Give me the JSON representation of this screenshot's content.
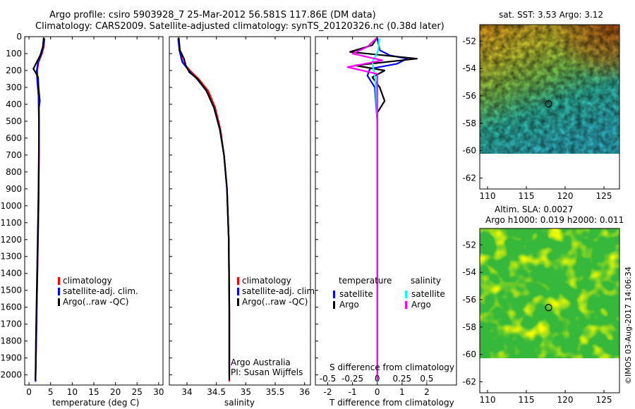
{
  "header": {
    "title_line1": "Argo profile: csiro 5903928_7 25-Mar-2012 56.581S 117.86E (DM data)",
    "title_line2": "Climatology: CARS2009. Satellite-adjusted climatology: synTS_20120326.nc (0.38d later)"
  },
  "footer": {
    "credit": "Argo Australia",
    "pi": "PI: Susan Wijffels",
    "stamp": "©IMOS 03-Aug-2017 14:06:34"
  },
  "colors": {
    "climatology": "#ff0000",
    "satellite": "#0000ff",
    "argo": "#000000",
    "sal_satellite": "#00ffff",
    "sal_argo": "#ff00ff"
  },
  "chart_data": [
    {
      "type": "line",
      "name": "temperature-profile",
      "xlabel": "temperature (deg C)",
      "ylabel": "",
      "xlim": [
        -1,
        31
      ],
      "ylim": [
        2060,
        0
      ],
      "xticks": [
        0,
        5,
        10,
        15,
        20,
        25,
        30
      ],
      "yticks": [
        0,
        100,
        200,
        300,
        400,
        500,
        600,
        700,
        800,
        900,
        1000,
        1100,
        1200,
        1300,
        1400,
        1500,
        1600,
        1700,
        1800,
        1900,
        2000
      ],
      "legend": [
        "climatology",
        "satellite-adj. clim.",
        "Argo(..raw -QC)"
      ],
      "series": [
        {
          "name": "climatology",
          "color": "#ff0000",
          "points": [
            [
              3.6,
              10
            ],
            [
              3.4,
              60
            ],
            [
              3.0,
              100
            ],
            [
              2.2,
              150
            ],
            [
              1.9,
              200
            ],
            [
              2.0,
              260
            ],
            [
              2.2,
              350
            ],
            [
              2.3,
              500
            ],
            [
              2.3,
              700
            ],
            [
              2.2,
              1000
            ],
            [
              2.0,
              1300
            ],
            [
              1.8,
              1600
            ],
            [
              1.6,
              1900
            ],
            [
              1.5,
              2040
            ]
          ]
        },
        {
          "name": "satellite-adj. clim.",
          "color": "#0000ff",
          "points": [
            [
              3.5,
              10
            ],
            [
              3.3,
              60
            ],
            [
              2.9,
              100
            ],
            [
              2.1,
              150
            ],
            [
              1.8,
              200
            ],
            [
              1.9,
              260
            ],
            [
              2.2,
              350
            ],
            [
              2.3,
              500
            ],
            [
              2.3,
              700
            ],
            [
              2.2,
              1000
            ],
            [
              2.0,
              1300
            ],
            [
              1.8,
              1600
            ],
            [
              1.6,
              1900
            ],
            [
              1.5,
              2040
            ]
          ]
        },
        {
          "name": "Argo",
          "color": "#000000",
          "points": [
            [
              3.4,
              5
            ],
            [
              3.2,
              60
            ],
            [
              2.6,
              110
            ],
            [
              1.6,
              160
            ],
            [
              1.0,
              190
            ],
            [
              1.5,
              210
            ],
            [
              2.1,
              240
            ],
            [
              2.2,
              300
            ],
            [
              2.5,
              380
            ],
            [
              2.3,
              420
            ],
            [
              2.3,
              600
            ],
            [
              2.2,
              900
            ],
            [
              2.0,
              1200
            ],
            [
              1.8,
              1500
            ],
            [
              1.6,
              1800
            ],
            [
              1.5,
              2030
            ]
          ]
        }
      ]
    },
    {
      "type": "line",
      "name": "salinity-profile",
      "xlabel": "salinity",
      "xlim": [
        33.7,
        36.1
      ],
      "ylim": [
        2060,
        0
      ],
      "xticks": [
        34,
        34.5,
        35,
        35.5,
        36
      ],
      "xtick_labels": [
        "34",
        "34.5",
        "35",
        "35.5",
        "36"
      ],
      "legend": [
        "climatology",
        "satellite-adj. clim.",
        "Argo(..raw -QC)"
      ],
      "series": [
        {
          "name": "climatology",
          "color": "#ff0000",
          "points": [
            [
              33.86,
              10
            ],
            [
              33.88,
              80
            ],
            [
              33.93,
              150
            ],
            [
              34.05,
              200
            ],
            [
              34.2,
              250
            ],
            [
              34.36,
              320
            ],
            [
              34.48,
              420
            ],
            [
              34.57,
              550
            ],
            [
              34.63,
              700
            ],
            [
              34.68,
              900
            ],
            [
              34.71,
              1200
            ],
            [
              34.72,
              1600
            ],
            [
              34.72,
              2040
            ]
          ]
        },
        {
          "name": "satellite-adj. clim.",
          "color": "#0000ff",
          "points": [
            [
              33.85,
              10
            ],
            [
              33.87,
              80
            ],
            [
              33.92,
              150
            ],
            [
              34.03,
              200
            ],
            [
              34.17,
              250
            ],
            [
              34.33,
              320
            ],
            [
              34.46,
              420
            ],
            [
              34.56,
              550
            ],
            [
              34.63,
              700
            ],
            [
              34.68,
              900
            ],
            [
              34.71,
              1200
            ],
            [
              34.72,
              1600
            ],
            [
              34.72,
              2000
            ]
          ]
        },
        {
          "name": "Argo",
          "color": "#000000",
          "points": [
            [
              33.86,
              5
            ],
            [
              33.88,
              80
            ],
            [
              33.95,
              130
            ],
            [
              33.98,
              170
            ],
            [
              34.04,
              210
            ],
            [
              34.18,
              250
            ],
            [
              34.33,
              320
            ],
            [
              34.46,
              420
            ],
            [
              34.56,
              550
            ],
            [
              34.63,
              700
            ],
            [
              34.68,
              900
            ],
            [
              34.71,
              1200
            ],
            [
              34.72,
              1600
            ],
            [
              34.72,
              2030
            ]
          ]
        }
      ]
    },
    {
      "type": "line",
      "name": "difference-from-climatology",
      "xlabel": "T difference from climatology",
      "xlabel_top": "S difference from climatology",
      "xlim": [
        -2.5,
        3.2
      ],
      "ylim": [
        2060,
        0
      ],
      "xticks": [
        -2,
        -1,
        0,
        1,
        2
      ],
      "xtick_labels": [
        "-2",
        "-1",
        "0",
        "1",
        "2"
      ],
      "s_ticks": [
        -0.5,
        -0.25,
        0,
        0.25,
        0.5
      ],
      "s_tick_labels": [
        "-0.5",
        "-0.25",
        "0",
        "0.25",
        "0.5"
      ],
      "legend_temperature_title": "temperature",
      "legend_salinity_title": "salinity",
      "legend": [
        "satellite",
        "Argo",
        "satellite",
        "Argo"
      ],
      "series": [
        {
          "name": "T satellite",
          "color": "#0000ff",
          "points": [
            [
              0.0,
              10
            ],
            [
              0.1,
              80
            ],
            [
              0.5,
              110
            ],
            [
              1.2,
              130
            ],
            [
              0.8,
              160
            ],
            [
              -0.3,
              190
            ],
            [
              -0.4,
              230
            ],
            [
              -0.1,
              300
            ],
            [
              0.0,
              500
            ],
            [
              0.0,
              1000
            ],
            [
              0.0,
              1500
            ],
            [
              0.0,
              2040
            ]
          ]
        },
        {
          "name": "T Argo",
          "color": "#000000",
          "points": [
            [
              0.0,
              5
            ],
            [
              -0.2,
              50
            ],
            [
              -1.1,
              90
            ],
            [
              1.6,
              130
            ],
            [
              -0.9,
              170
            ],
            [
              0.3,
              200
            ],
            [
              -0.2,
              240
            ],
            [
              0.1,
              300
            ],
            [
              0.3,
              380
            ],
            [
              0.0,
              450
            ],
            [
              0.0,
              1000
            ],
            [
              0.0,
              1500
            ],
            [
              0.0,
              2030
            ]
          ]
        },
        {
          "name": "S satellite",
          "color": "#00ffff",
          "points": [
            [
              0.02,
              10
            ],
            [
              0.01,
              80
            ],
            [
              -0.05,
              150
            ],
            [
              -0.02,
              250
            ],
            [
              0.0,
              500
            ],
            [
              0.0,
              1000
            ],
            [
              0.0,
              2040
            ]
          ]
        },
        {
          "name": "S Argo",
          "color": "#ff00ff",
          "points": [
            [
              0.0,
              5
            ],
            [
              -0.1,
              60
            ],
            [
              -0.25,
              100
            ],
            [
              0.05,
              140
            ],
            [
              -0.3,
              180
            ],
            [
              0.0,
              220
            ],
            [
              0.0,
              300
            ],
            [
              0.0,
              2030
            ]
          ]
        }
      ]
    },
    {
      "type": "heatmap",
      "name": "sst-map",
      "title": "sat. SST: 3.53 Argo: 3.12",
      "xlim": [
        109,
        127
      ],
      "ylim": [
        -62.8,
        -50.8
      ],
      "xticks": [
        110,
        115,
        120,
        125
      ],
      "yticks": [
        -52,
        -54,
        -56,
        -58,
        -60,
        -62
      ],
      "marker": {
        "lon": 117.86,
        "lat": -56.581
      }
    },
    {
      "type": "heatmap",
      "name": "sla-map",
      "title_line1": "Altim. SLA: 0.0027",
      "title_line2": "Argo h1000: 0.019 h2000: 0.011",
      "xlim": [
        109,
        127
      ],
      "ylim": [
        -62.8,
        -50.8
      ],
      "xticks": [
        110,
        115,
        120,
        125
      ],
      "yticks": [
        -52,
        -54,
        -56,
        -58,
        -60,
        -62
      ],
      "marker": {
        "lon": 117.86,
        "lat": -56.581
      }
    }
  ]
}
